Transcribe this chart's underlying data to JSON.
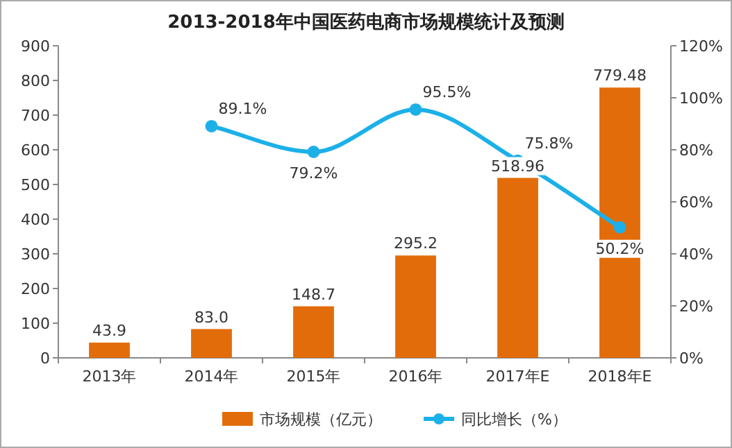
{
  "chart_data": {
    "type": "bar",
    "title": "2013-2018年中国医药电商市场规模统计及预测",
    "categories": [
      "2013年",
      "2014年",
      "2015年",
      "2016年",
      "2017年E",
      "2018年E"
    ],
    "series": [
      {
        "name": "市场规模（亿元）",
        "color": "#e36c0a",
        "values": [
          43.9,
          83.0,
          148.7,
          295.2,
          518.96,
          779.48
        ],
        "value_labels": [
          "43.9",
          "83.0",
          "148.7",
          "295.2",
          "518.96",
          "779.48"
        ]
      },
      {
        "name": "同比增长（%）",
        "type": "line",
        "axis": "y2",
        "color": "#1cb0e8",
        "values": [
          null,
          89.1,
          79.2,
          95.5,
          75.8,
          50.2
        ],
        "value_labels": [
          null,
          "89.1%",
          "79.2%",
          "95.5%",
          "75.8%",
          "50.2%"
        ]
      }
    ],
    "ylim": [
      0,
      900
    ],
    "yticks": [
      0,
      100,
      200,
      300,
      400,
      500,
      600,
      700,
      800,
      900
    ],
    "y2lim": [
      0,
      120
    ],
    "y2ticks": [
      {
        "value": 0,
        "label": "0%"
      },
      {
        "value": 20,
        "label": "20%"
      },
      {
        "value": 40,
        "label": "40%"
      },
      {
        "value": 60,
        "label": "60%"
      },
      {
        "value": 80,
        "label": "80%"
      },
      {
        "value": 100,
        "label": "100%"
      },
      {
        "value": 120,
        "label": "120%"
      }
    ],
    "marker": "circle",
    "legend": "bottom"
  }
}
